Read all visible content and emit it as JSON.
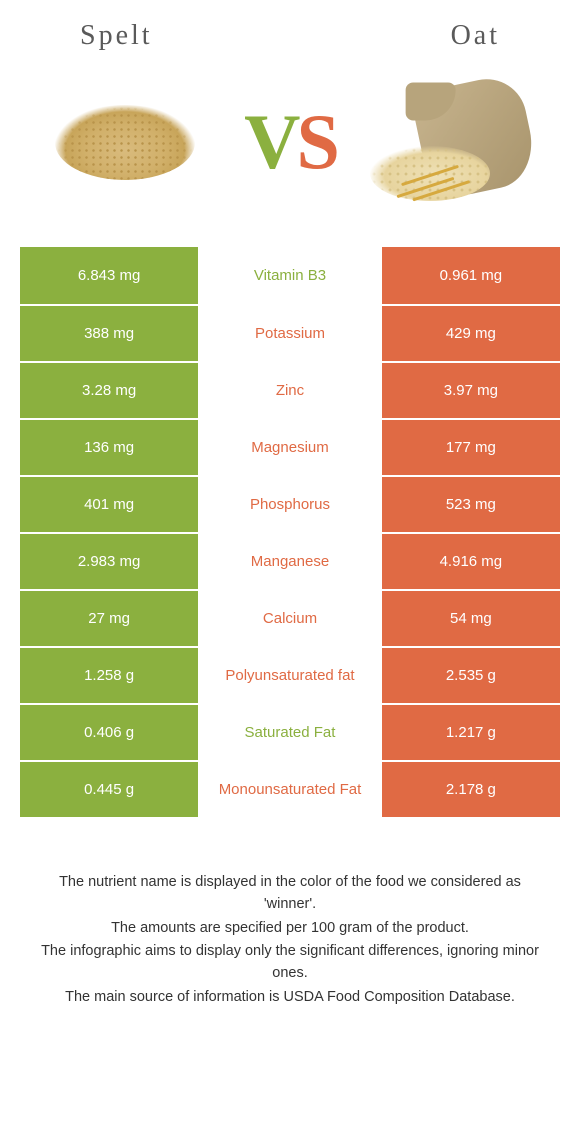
{
  "header": {
    "left_title": "Spelt",
    "right_title": "Oat"
  },
  "vs": {
    "v": "V",
    "s": "S"
  },
  "colors": {
    "green": "#8bb03f",
    "orange": "#e06a44",
    "text": "#333333",
    "bg": "#ffffff"
  },
  "table": {
    "left_bg": "#8bb03f",
    "right_bg": "#e06a44",
    "rows": [
      {
        "nutrient": "Vitamin B3",
        "left": "6.843 mg",
        "right": "0.961 mg",
        "winner": "left"
      },
      {
        "nutrient": "Potassium",
        "left": "388 mg",
        "right": "429 mg",
        "winner": "right"
      },
      {
        "nutrient": "Zinc",
        "left": "3.28 mg",
        "right": "3.97 mg",
        "winner": "right"
      },
      {
        "nutrient": "Magnesium",
        "left": "136 mg",
        "right": "177 mg",
        "winner": "right"
      },
      {
        "nutrient": "Phosphorus",
        "left": "401 mg",
        "right": "523 mg",
        "winner": "right"
      },
      {
        "nutrient": "Manganese",
        "left": "2.983 mg",
        "right": "4.916 mg",
        "winner": "right"
      },
      {
        "nutrient": "Calcium",
        "left": "27 mg",
        "right": "54 mg",
        "winner": "right"
      },
      {
        "nutrient": "Polyunsaturated fat",
        "left": "1.258 g",
        "right": "2.535 g",
        "winner": "right"
      },
      {
        "nutrient": "Saturated Fat",
        "left": "0.406 g",
        "right": "1.217 g",
        "winner": "left"
      },
      {
        "nutrient": "Monounsaturated Fat",
        "left": "0.445 g",
        "right": "2.178 g",
        "winner": "right"
      }
    ]
  },
  "footnotes": [
    "The nutrient name is displayed in the color of the food we considered as 'winner'.",
    "The amounts are specified per 100 gram of the product.",
    "The infographic aims to display only the significant differences, ignoring minor ones.",
    "The main source of information is USDA Food Composition Database."
  ]
}
